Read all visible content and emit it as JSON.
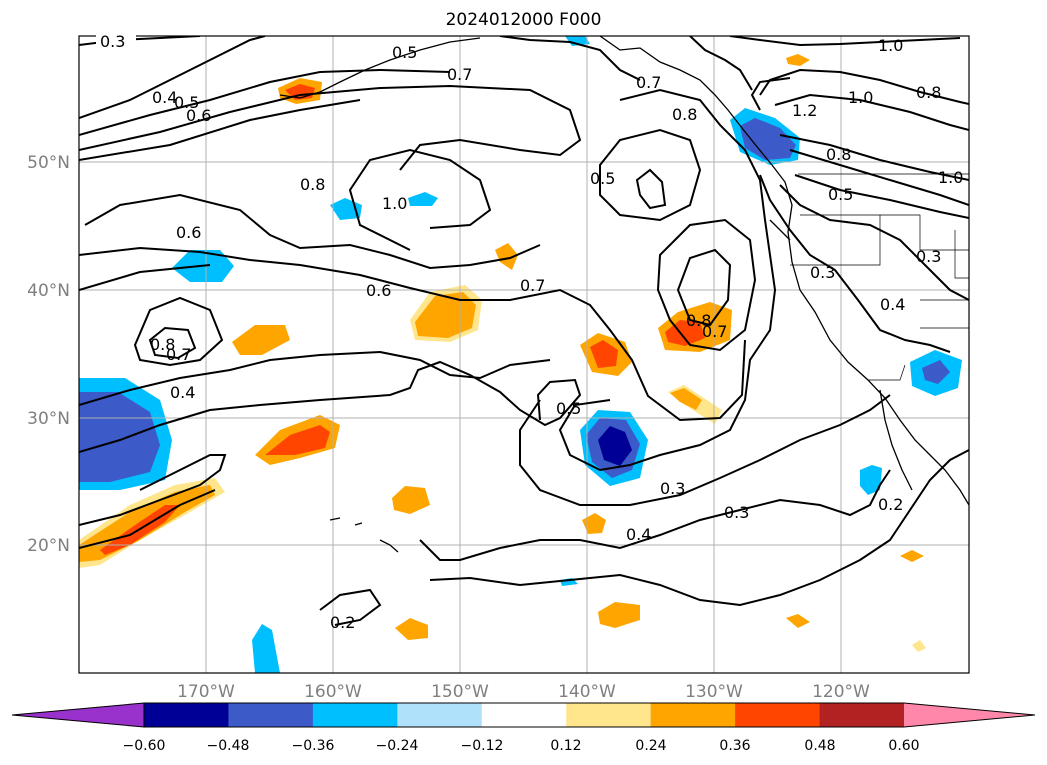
{
  "title": "2024012000 F000",
  "map": {
    "lon_labels": [
      "170°W",
      "160°W",
      "150°W",
      "140°W",
      "130°W",
      "120°W"
    ],
    "lat_labels": [
      "50°N",
      "40°N",
      "30°N",
      "20°N"
    ]
  },
  "contour_labels": [
    "0.3",
    "0.4",
    "0.5",
    "0.6",
    "0.5",
    "0.7",
    "0.7",
    "0.8",
    "1.0",
    "1.2",
    "0.8",
    "1.0",
    "0.8",
    "1.0",
    "0.5",
    "0.8",
    "1.0",
    "0.6",
    "0.5",
    "0.3",
    "0.3",
    "0.6",
    "0.7",
    "0.7",
    "0.8",
    "0.7",
    "0.8",
    "0.4",
    "0.4",
    "0.5",
    "0.3",
    "0.3",
    "0.4",
    "0.2",
    "0.2"
  ],
  "colorbar": {
    "tick_labels": [
      "−0.60",
      "−0.48",
      "−0.36",
      "−0.24",
      "−0.12",
      "0.12",
      "0.24",
      "0.36",
      "0.48",
      "0.60"
    ],
    "colors": [
      "#9932CC",
      "#000096",
      "#3C5AC8",
      "#00BFFF",
      "#AFE1FA",
      "#FFFFFF",
      "#FFE68C",
      "#FFA500",
      "#FF4500",
      "#B22222",
      "#FF88AA"
    ]
  }
}
